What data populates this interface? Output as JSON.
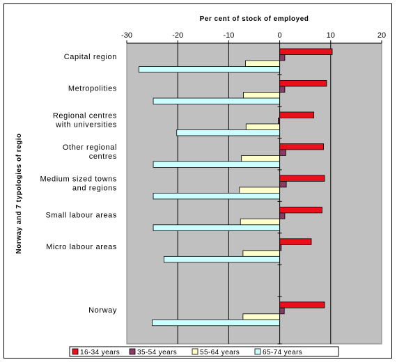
{
  "chart_data": {
    "type": "bar",
    "orientation": "horizontal",
    "title": "",
    "xlabel": "Per cent of stock of employed",
    "ylabel": "Norway and 7 typologies of regio",
    "xlim": [
      -30,
      20
    ],
    "xticks": [
      -30,
      -20,
      -10,
      0,
      10,
      20
    ],
    "grid": true,
    "legend_position": "bottom",
    "categories": [
      [
        "Capital region"
      ],
      [
        "Metropolities"
      ],
      [
        "Regional centres",
        "with universities"
      ],
      [
        "Other regional",
        "centres"
      ],
      [
        "Medium sized towns",
        "and regions"
      ],
      [
        "Small labour areas"
      ],
      [
        "Micro labour areas"
      ],
      [
        ""
      ],
      [
        "Norway"
      ]
    ],
    "series": [
      {
        "name": "16-34 years",
        "color": "#e8101a",
        "values": [
          10.3,
          9.2,
          6.7,
          8.6,
          8.8,
          8.3,
          6.2,
          null,
          8.8
        ]
      },
      {
        "name": "35-54 years",
        "color": "#8a3a63",
        "values": [
          1.0,
          1.0,
          -0.3,
          1.2,
          1.3,
          1.0,
          0.3,
          null,
          0.9
        ]
      },
      {
        "name": "55-64 years",
        "color": "#ffffcc",
        "values": [
          -6.7,
          -7.1,
          -6.6,
          -7.5,
          -7.9,
          -7.7,
          -7.2,
          null,
          -7.2
        ]
      },
      {
        "name": "65-74 years",
        "color": "#ccffff",
        "values": [
          -27.6,
          -24.8,
          -20.2,
          -24.8,
          -24.8,
          -24.8,
          -22.7,
          null,
          -25.0
        ]
      }
    ]
  }
}
